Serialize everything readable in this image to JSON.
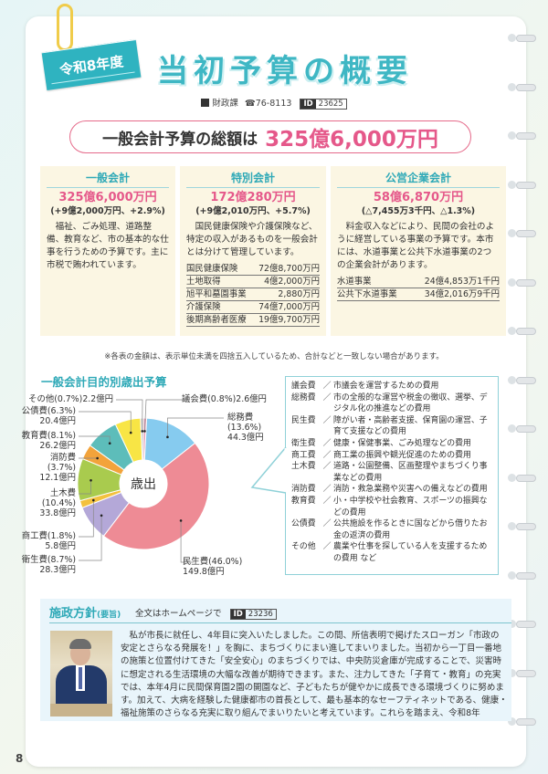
{
  "header": {
    "badge": "令和8年度",
    "title": "当初予算の概要",
    "dept": "財政課",
    "phone": "☎76-8113",
    "id_label": "ID",
    "id": "23625"
  },
  "total": {
    "label": "一般会計予算の総額は",
    "value": "325億6,000万円"
  },
  "accounts": [
    {
      "title": "一般会計",
      "amount": "325億6,000万円",
      "change": "(+9億2,000万円、+2.9%)",
      "text": "福祉、ごみ処理、道路整備、教育など、市の基本的な仕事を行うための予算です。主に市税で賄われています。",
      "items": []
    },
    {
      "title": "特別会計",
      "amount": "172億280万円",
      "change": "(+9億2,010万円、+5.7%)",
      "text": "国民健康保険や介護保険など、特定の収入があるものを一般会計とは分けて管理しています。",
      "items": [
        {
          "name": "国民健康保険",
          "value": "72億8,700万円"
        },
        {
          "name": "土地取得",
          "value": "4億2,000万円"
        },
        {
          "name": "旭平和墓園事業",
          "value": "2,880万円"
        },
        {
          "name": "介護保険",
          "value": "74億7,000万円"
        },
        {
          "name": "後期高齢者医療",
          "value": "19億9,700万円"
        }
      ]
    },
    {
      "title": "公営企業会計",
      "amount": "58億6,870万円",
      "change": "(△7,455万3千円、△1.3%)",
      "text": "料金収入などにより、民間の会社のように経営している事業の予算です。本市には、水道事業と公共下水道事業の2つの企業会計があります。",
      "items": [
        {
          "name": "水道事業",
          "value": "24億4,853万1千円"
        },
        {
          "name": "公共下水道事業",
          "value": "34億2,016万9千円"
        }
      ]
    }
  ],
  "note": "※各表の金額は、表示単位未満を四捨五入しているため、合計などと一致しない場合があります。",
  "chart_data": {
    "type": "pie",
    "title": "一般会計目的別歳出予算",
    "center_label": "歳出",
    "unit": "億円",
    "slices": [
      {
        "name": "議会費",
        "percent": 0.8,
        "value": 2.6,
        "label": "議会費(0.8%)2.6億円",
        "color": "#e9a0b8"
      },
      {
        "name": "総務費",
        "percent": 13.6,
        "value": 44.3,
        "label": "総務費\n(13.6%)\n44.3億円",
        "color": "#86cbef"
      },
      {
        "name": "民生費",
        "percent": 46.0,
        "value": 149.8,
        "label": "民生費(46.0%)\n149.8億円",
        "color": "#ee8b95"
      },
      {
        "name": "衛生費",
        "percent": 8.7,
        "value": 28.3,
        "label": "衛生費(8.7%)\n28.3億円",
        "color": "#b4a8d8"
      },
      {
        "name": "商工費",
        "percent": 1.8,
        "value": 5.8,
        "label": "商工費(1.8%)\n5.8億円",
        "color": "#f3c13e"
      },
      {
        "name": "土木費",
        "percent": 10.4,
        "value": 33.8,
        "label": "土木費\n(10.4%)\n33.8億円",
        "color": "#a9cb4e"
      },
      {
        "name": "消防費",
        "percent": 3.7,
        "value": 12.1,
        "label": "消防費\n(3.7%)\n12.1億円",
        "color": "#f2a33b"
      },
      {
        "name": "教育費",
        "percent": 8.1,
        "value": 26.2,
        "label": "教育費(8.1%)\n26.2億円",
        "color": "#5dbdba"
      },
      {
        "name": "公債費",
        "percent": 6.3,
        "value": 20.4,
        "label": "公債費(6.3%)\n20.4億円",
        "color": "#f8e545"
      },
      {
        "name": "その他",
        "percent": 0.7,
        "value": 2.2,
        "label": "その他(0.7%)2.2億円",
        "color": "#c9c9c9"
      }
    ]
  },
  "descriptions": [
    {
      "k": "議会費",
      "t": "市議会を運営するための費用"
    },
    {
      "k": "総務費",
      "t": "市の全般的な運営や税金の徴収、選挙、デジタル化の推進などの費用"
    },
    {
      "k": "民生費",
      "t": "障がい者・高齢者支援、保育園の運営、子育て支援などの費用"
    },
    {
      "k": "衛生費",
      "t": "健康・保健事業、ごみ処理などの費用"
    },
    {
      "k": "商工費",
      "t": "商工業の振興や観光促進のための費用"
    },
    {
      "k": "土木費",
      "t": "道路・公園整備、区画整理やまちづくり事業などの費用"
    },
    {
      "k": "消防費",
      "t": "消防・救急業務や災害への備えなどの費用"
    },
    {
      "k": "教育費",
      "t": "小・中学校や社会教育、スポーツの振興などの費用"
    },
    {
      "k": "公債費",
      "t": "公共施設を作るときに国などから借りたお金の返済の費用"
    },
    {
      "k": "その他",
      "t": "農業や仕事を探している人を支援するための費用 など"
    }
  ],
  "sep": "／",
  "policy": {
    "title": "施政方針",
    "title_sub": "(要旨)",
    "sub": "全文はホームページで",
    "id_label": "ID",
    "id": "23236",
    "body": "私が市長に就任し、4年目に突入いたしました。この間、所信表明で掲げたスローガン「市政の安定とさらなる発展を！」を胸に、まちづくりにまい進してまいりました。当初から一丁目一番地の施策と位置付けてきた「安全安心」のまちづくりでは、中央防災倉庫が完成することで、災害時に想定される生活環境の大幅な改善が期待できます。また、注力してきた「子育て・教育」の充実では、本年4月に民間保育園2園の開園など、子どもたちが健やかに成長できる環境づくりに努めます。加えて、大病を経験した健康都市の首長として、最も基本的なセーフティネットである、健康・福祉施策のさらなる充実に取り組んでまいりたいと考えています。これらを踏まえ、令和8年"
  },
  "page_number": "8"
}
